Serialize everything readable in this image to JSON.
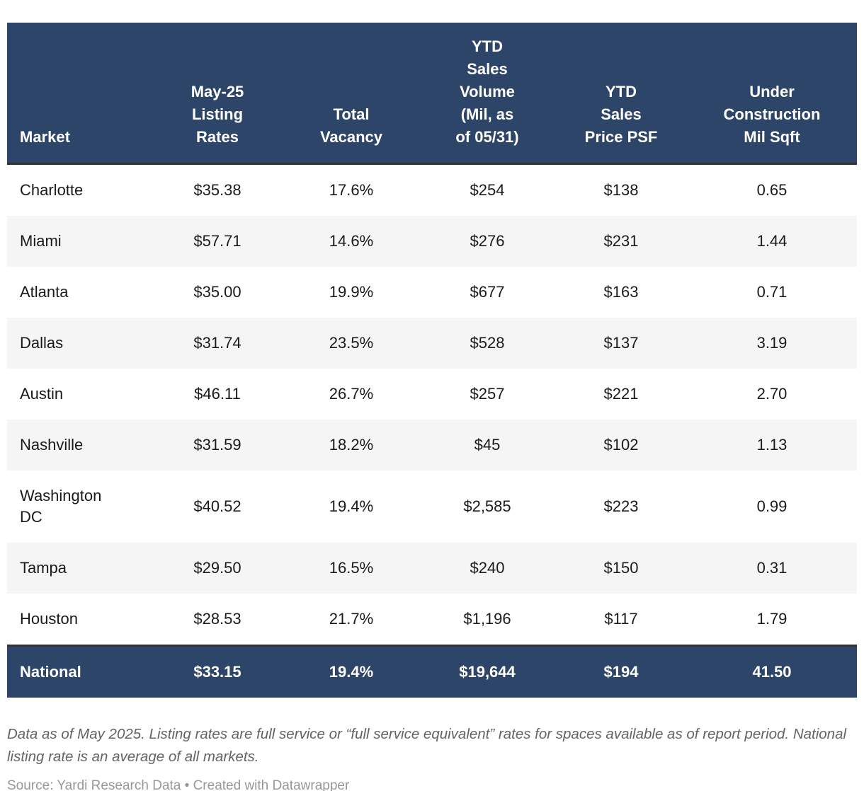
{
  "table": {
    "columns": [
      "Market",
      "May-25\nListing\nRates",
      "Total\nVacancy",
      "YTD\nSales\nVolume\n(Mil, as\nof 05/31)",
      "YTD\nSales\nPrice PSF",
      "Under\nConstruction\nMil Sqft"
    ],
    "rows": [
      {
        "cells": [
          "Charlotte",
          "$35.38",
          "17.6%",
          "$254",
          "$138",
          "0.65"
        ]
      },
      {
        "cells": [
          "Miami",
          "$57.71",
          "14.6%",
          "$276",
          "$231",
          "1.44"
        ]
      },
      {
        "cells": [
          "Atlanta",
          "$35.00",
          "19.9%",
          "$677",
          "$163",
          "0.71"
        ]
      },
      {
        "cells": [
          "Dallas",
          "$31.74",
          "23.5%",
          "$528",
          "$137",
          "3.19"
        ]
      },
      {
        "cells": [
          "Austin",
          "$46.11",
          "26.7%",
          "$257",
          "$221",
          "2.70"
        ]
      },
      {
        "cells": [
          "Nashville",
          "$31.59",
          "18.2%",
          "$45",
          "$102",
          "1.13"
        ]
      },
      {
        "cells": [
          "Washington\nDC",
          "$40.52",
          "19.4%",
          "$2,585",
          "$223",
          "0.99"
        ]
      },
      {
        "cells": [
          "Tampa",
          "$29.50",
          "16.5%",
          "$240",
          "$150",
          "0.31"
        ]
      },
      {
        "cells": [
          "Houston",
          "$28.53",
          "21.7%",
          "$1,196",
          "$117",
          "1.79"
        ]
      }
    ],
    "national": {
      "cells": [
        "National",
        "$33.15",
        "19.4%",
        "$19,644",
        "$194",
        "41.50"
      ]
    }
  },
  "footer": {
    "note": "Data as of May 2025. Listing rates are full service or “full service equivalent” rates for spaces available as of report period. National listing rate is an average of all markets.",
    "source": "Source: Yardi Research Data • Created with Datawrapper"
  },
  "colors": {
    "header_bg": "#2d4568",
    "header_text": "#ffffff",
    "stripe": "#f5f5f5",
    "divider": "#333333",
    "body_text": "#1a1a1a",
    "note_text": "#636363",
    "source_text": "#979797"
  },
  "chart_data": {
    "type": "table",
    "title": "",
    "columns": [
      "Market",
      "May-25 Listing Rates",
      "Total Vacancy",
      "YTD Sales Volume (Mil, as of 05/31)",
      "YTD Sales Price PSF",
      "Under Construction Mil Sqft"
    ],
    "rows": [
      [
        "Charlotte",
        35.38,
        "17.6%",
        254,
        138,
        0.65
      ],
      [
        "Miami",
        57.71,
        "14.6%",
        276,
        231,
        1.44
      ],
      [
        "Atlanta",
        35.0,
        "19.9%",
        677,
        163,
        0.71
      ],
      [
        "Dallas",
        31.74,
        "23.5%",
        528,
        137,
        3.19
      ],
      [
        "Austin",
        46.11,
        "26.7%",
        257,
        221,
        2.7
      ],
      [
        "Nashville",
        31.59,
        "18.2%",
        45,
        102,
        1.13
      ],
      [
        "Washington DC",
        40.52,
        "19.4%",
        2585,
        223,
        0.99
      ],
      [
        "Tampa",
        29.5,
        "16.5%",
        240,
        150,
        0.31
      ],
      [
        "Houston",
        28.53,
        "21.7%",
        1196,
        117,
        1.79
      ],
      [
        "National",
        33.15,
        "19.4%",
        19644,
        194,
        41.5
      ]
    ],
    "layout_hints": {
      "striped_rows": true,
      "summary_row": "National",
      "header_style": "dark-navy, bottom-aligned, wrapped labels"
    }
  }
}
